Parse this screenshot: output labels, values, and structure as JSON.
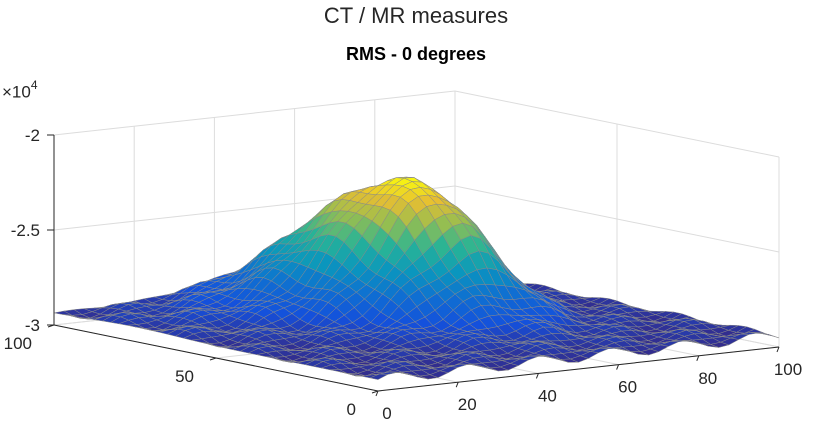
{
  "figure": {
    "suptitle": "CT / MR measures",
    "title": "RMS - 0 degrees",
    "z_exponent_base": "×10",
    "z_exponent_power": "4"
  },
  "chart_data": {
    "type": "surface",
    "title": "RMS - 0 degrees",
    "xlabel": "",
    "ylabel": "",
    "zlabel": "",
    "xlim": [
      0,
      100
    ],
    "ylim": [
      0,
      100
    ],
    "zlim": [
      -30000,
      -20000
    ],
    "z_multiplier": "×10^4",
    "x_ticks": [
      "0",
      "20",
      "40",
      "60",
      "80",
      "100"
    ],
    "y_ticks": [
      "0",
      "50",
      "100"
    ],
    "z_ticks": [
      "-3",
      "-2.5",
      "-2"
    ],
    "colormap": "parula",
    "grid": true,
    "approx_surface": {
      "base_z": -29400,
      "peak_z": -23300,
      "peak_x": 52,
      "peak_y": 65
    }
  }
}
